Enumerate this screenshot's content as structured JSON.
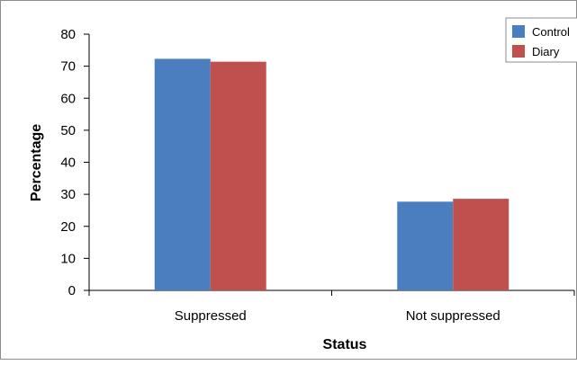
{
  "chart_data": {
    "type": "bar",
    "categories": [
      "Suppressed",
      "Not suppressed"
    ],
    "series": [
      {
        "name": "Control",
        "values": [
          72.3,
          27.7
        ],
        "color": "#4a7ebf"
      },
      {
        "name": "Diary",
        "values": [
          71.4,
          28.6
        ],
        "color": "#c0504d"
      }
    ],
    "xlabel": "Status",
    "ylabel": "Percentage",
    "ylim": [
      0,
      80
    ],
    "yticks": [
      "0",
      "10",
      "20",
      "30",
      "40",
      "50",
      "60",
      "70",
      "80"
    ],
    "grid": false,
    "legend_position": "top-right"
  }
}
